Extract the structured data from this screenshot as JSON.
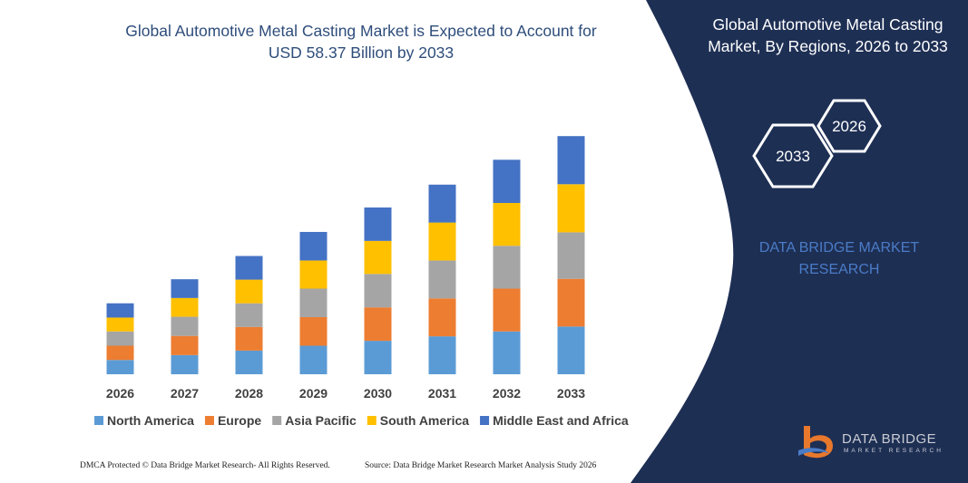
{
  "chart_data": {
    "type": "stacked-bar",
    "title": "Global Automotive Metal Casting Market is Expected to Account for USD 58.37 Billion by 2033",
    "categories": [
      "2026",
      "2027",
      "2028",
      "2029",
      "2030",
      "2031",
      "2032",
      "2033"
    ],
    "series": [
      {
        "name": "North America",
        "color": "#5b9bd5",
        "values": [
          3.5,
          4.7,
          5.8,
          7.0,
          8.2,
          9.3,
          10.5,
          11.7
        ]
      },
      {
        "name": "Europe",
        "color": "#ed7d31",
        "values": [
          3.5,
          4.7,
          5.8,
          7.0,
          8.2,
          9.3,
          10.5,
          11.7
        ]
      },
      {
        "name": "Asia Pacific",
        "color": "#a5a5a5",
        "values": [
          3.5,
          4.7,
          5.8,
          7.0,
          8.2,
          9.3,
          10.5,
          11.4
        ]
      },
      {
        "name": "South America",
        "color": "#ffc000",
        "values": [
          3.4,
          4.6,
          5.8,
          6.9,
          8.1,
          9.3,
          10.5,
          11.8
        ]
      },
      {
        "name": "Middle East and Africa",
        "color": "#4472c4",
        "values": [
          3.5,
          4.6,
          5.8,
          7.0,
          8.2,
          9.3,
          10.6,
          11.8
        ]
      }
    ],
    "ylim": [
      0,
      60
    ],
    "legend": "bottom"
  },
  "panel": {
    "title": "Global Automotive Metal Casting Market, By Regions, 2026 to 2033",
    "hexagons": [
      "2026",
      "2033"
    ],
    "brand": "DATA BRIDGE MARKET RESEARCH"
  },
  "footer": {
    "left": "DMCA Protected © Data Bridge Market Research- All Rights Reserved.",
    "right": "Source: Data Bridge Market Research Market Analysis Study 2026"
  },
  "logo": {
    "name": "DATA BRIDGE",
    "tagline": "MARKET RESEARCH"
  }
}
